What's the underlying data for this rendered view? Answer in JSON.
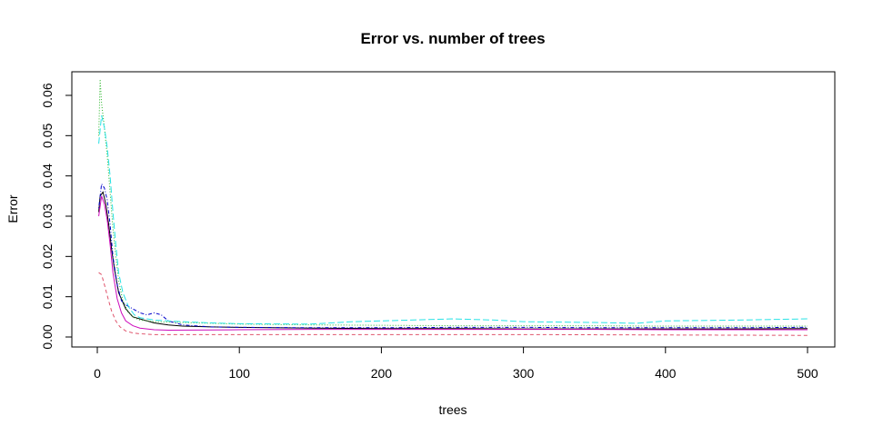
{
  "chart_data": {
    "type": "line",
    "title": "Error vs. number of trees",
    "xlabel": "trees",
    "ylabel": "Error",
    "xlim": [
      0,
      500
    ],
    "ylim": [
      0,
      0.064
    ],
    "x_ticks": [
      0,
      100,
      200,
      300,
      400,
      500
    ],
    "y_ticks": [
      0.0,
      0.01,
      0.02,
      0.03,
      0.04,
      0.05,
      0.06
    ],
    "x_tick_labels": [
      "0",
      "100",
      "200",
      "300",
      "400",
      "500"
    ],
    "y_tick_labels": [
      "0.00",
      "0.01",
      "0.02",
      "0.03",
      "0.04",
      "0.05",
      "0.06"
    ],
    "grid": false,
    "legend": "none",
    "series": [
      {
        "color": "#000000",
        "dash": "solid",
        "points": [
          [
            1,
            0.031
          ],
          [
            2,
            0.035
          ],
          [
            4,
            0.036
          ],
          [
            6,
            0.033
          ],
          [
            8,
            0.028
          ],
          [
            10,
            0.022
          ],
          [
            12,
            0.017
          ],
          [
            15,
            0.011
          ],
          [
            20,
            0.007
          ],
          [
            25,
            0.005
          ],
          [
            30,
            0.0045
          ],
          [
            40,
            0.0035
          ],
          [
            50,
            0.003
          ],
          [
            60,
            0.0027
          ],
          [
            80,
            0.0025
          ],
          [
            100,
            0.0024
          ],
          [
            150,
            0.0022
          ],
          [
            200,
            0.0021
          ],
          [
            250,
            0.0021
          ],
          [
            300,
            0.002
          ],
          [
            350,
            0.002
          ],
          [
            400,
            0.002
          ],
          [
            450,
            0.002
          ],
          [
            500,
            0.0021
          ]
        ]
      },
      {
        "color": "#DF536B",
        "dash": "dashed",
        "points": [
          [
            1,
            0.016
          ],
          [
            3,
            0.0155
          ],
          [
            5,
            0.013
          ],
          [
            8,
            0.009
          ],
          [
            10,
            0.0065
          ],
          [
            13,
            0.004
          ],
          [
            16,
            0.0025
          ],
          [
            20,
            0.0015
          ],
          [
            25,
            0.001
          ],
          [
            30,
            0.0008
          ],
          [
            40,
            0.0006
          ],
          [
            50,
            0.0006
          ],
          [
            100,
            0.0006
          ],
          [
            200,
            0.0006
          ],
          [
            300,
            0.0006
          ],
          [
            400,
            0.0005
          ],
          [
            500,
            0.0004
          ]
        ]
      },
      {
        "color": "#22B422",
        "dash": "dotted",
        "points": [
          [
            1,
            0.05
          ],
          [
            2,
            0.064
          ],
          [
            3,
            0.058
          ],
          [
            5,
            0.052
          ],
          [
            7,
            0.045
          ],
          [
            9,
            0.036
          ],
          [
            11,
            0.027
          ],
          [
            13,
            0.02
          ],
          [
            15,
            0.014
          ],
          [
            18,
            0.009
          ],
          [
            22,
            0.006
          ],
          [
            26,
            0.0048
          ],
          [
            30,
            0.0042
          ],
          [
            40,
            0.0038
          ],
          [
            60,
            0.0036
          ],
          [
            80,
            0.0034
          ],
          [
            100,
            0.0032
          ],
          [
            150,
            0.003
          ],
          [
            200,
            0.0029
          ],
          [
            250,
            0.0028
          ],
          [
            300,
            0.0028
          ],
          [
            350,
            0.0028
          ],
          [
            400,
            0.0027
          ],
          [
            450,
            0.0027
          ],
          [
            500,
            0.0027
          ]
        ]
      },
      {
        "color": "#0000CC",
        "dash": "dotdash",
        "points": [
          [
            1,
            0.032
          ],
          [
            3,
            0.038
          ],
          [
            5,
            0.037
          ],
          [
            7,
            0.034
          ],
          [
            9,
            0.028
          ],
          [
            11,
            0.02
          ],
          [
            14,
            0.013
          ],
          [
            17,
            0.009
          ],
          [
            20,
            0.008
          ],
          [
            25,
            0.007
          ],
          [
            30,
            0.006
          ],
          [
            35,
            0.0055
          ],
          [
            40,
            0.006
          ],
          [
            45,
            0.0055
          ],
          [
            50,
            0.004
          ],
          [
            60,
            0.003
          ],
          [
            80,
            0.0025
          ],
          [
            100,
            0.0024
          ],
          [
            150,
            0.0023
          ],
          [
            200,
            0.0023
          ],
          [
            250,
            0.0024
          ],
          [
            300,
            0.0024
          ],
          [
            350,
            0.0023
          ],
          [
            400,
            0.0023
          ],
          [
            450,
            0.0023
          ],
          [
            500,
            0.0024
          ]
        ]
      },
      {
        "color": "#28E2E5",
        "dash": "longdash",
        "points": [
          [
            1,
            0.048
          ],
          [
            3,
            0.055
          ],
          [
            5,
            0.052
          ],
          [
            7,
            0.047
          ],
          [
            9,
            0.04
          ],
          [
            11,
            0.031
          ],
          [
            13,
            0.023
          ],
          [
            15,
            0.016
          ],
          [
            18,
            0.011
          ],
          [
            22,
            0.0075
          ],
          [
            26,
            0.0055
          ],
          [
            30,
            0.0048
          ],
          [
            40,
            0.0042
          ],
          [
            60,
            0.0038
          ],
          [
            80,
            0.0035
          ],
          [
            100,
            0.0033
          ],
          [
            150,
            0.0032
          ],
          [
            180,
            0.0038
          ],
          [
            200,
            0.004
          ],
          [
            250,
            0.0045
          ],
          [
            280,
            0.0042
          ],
          [
            300,
            0.0038
          ],
          [
            350,
            0.0036
          ],
          [
            380,
            0.0034
          ],
          [
            400,
            0.004
          ],
          [
            450,
            0.0042
          ],
          [
            500,
            0.0045
          ]
        ]
      },
      {
        "color": "#CD0BBC",
        "dash": "solid",
        "points": [
          [
            1,
            0.03
          ],
          [
            3,
            0.035
          ],
          [
            5,
            0.033
          ],
          [
            7,
            0.029
          ],
          [
            9,
            0.023
          ],
          [
            11,
            0.016
          ],
          [
            14,
            0.0095
          ],
          [
            17,
            0.006
          ],
          [
            20,
            0.004
          ],
          [
            25,
            0.0028
          ],
          [
            30,
            0.0022
          ],
          [
            40,
            0.0018
          ],
          [
            50,
            0.0017
          ],
          [
            100,
            0.0018
          ],
          [
            150,
            0.0019
          ],
          [
            200,
            0.0019
          ],
          [
            250,
            0.0019
          ],
          [
            300,
            0.0019
          ],
          [
            350,
            0.0019
          ],
          [
            400,
            0.0018
          ],
          [
            450,
            0.0018
          ],
          [
            500,
            0.0018
          ]
        ]
      }
    ]
  }
}
